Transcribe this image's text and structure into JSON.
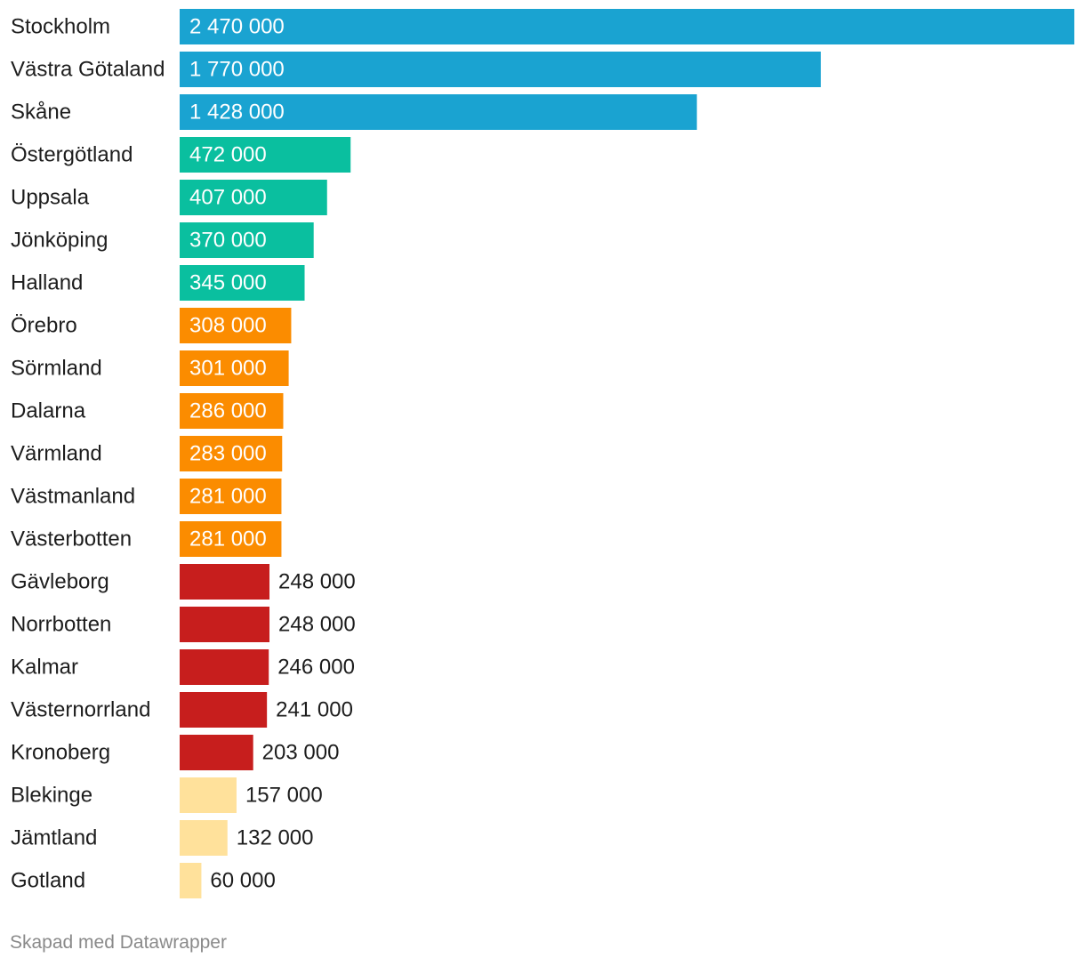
{
  "chart_data": {
    "type": "bar",
    "orientation": "horizontal",
    "title": "",
    "xlabel": "",
    "ylabel": "",
    "xlim": [
      0,
      2470000
    ],
    "grid": false,
    "categories": [
      "Stockholm",
      "Västra Götaland",
      "Skåne",
      "Östergötland",
      "Uppsala",
      "Jönköping",
      "Halland",
      "Örebro",
      "Sörmland",
      "Dalarna",
      "Värmland",
      "Västmanland",
      "Västerbotten",
      "Gävleborg",
      "Norrbotten",
      "Kalmar",
      "Västernorrland",
      "Kronoberg",
      "Blekinge",
      "Jämtland",
      "Gotland"
    ],
    "values": [
      2470000,
      1770000,
      1428000,
      472000,
      407000,
      370000,
      345000,
      308000,
      301000,
      286000,
      283000,
      281000,
      281000,
      248000,
      248000,
      246000,
      241000,
      203000,
      157000,
      132000,
      60000
    ],
    "value_labels": [
      "2 470 000",
      "1 770 000",
      "1 428 000",
      "472 000",
      "407 000",
      "370 000",
      "345 000",
      "308 000",
      "301 000",
      "286 000",
      "283 000",
      "281 000",
      "281 000",
      "248 000",
      "248 000",
      "246 000",
      "241 000",
      "203 000",
      "157 000",
      "132 000",
      "60 000"
    ],
    "colors": [
      "#1aa3d1",
      "#1aa3d1",
      "#1aa3d1",
      "#0abf9f",
      "#0abf9f",
      "#0abf9f",
      "#0abf9f",
      "#fb8c00",
      "#fb8c00",
      "#fb8c00",
      "#fb8c00",
      "#fb8c00",
      "#fb8c00",
      "#c71e1d",
      "#c71e1d",
      "#c71e1d",
      "#c71e1d",
      "#c71e1d",
      "#ffe19b",
      "#ffe19b",
      "#ffe19b"
    ],
    "label_inside": [
      true,
      true,
      true,
      true,
      true,
      true,
      true,
      true,
      true,
      true,
      true,
      true,
      true,
      false,
      false,
      false,
      false,
      false,
      false,
      false,
      false
    ],
    "inside_label_color": "#ffffff",
    "outside_label_color": "#1d1d1d"
  },
  "footer": {
    "text": "Skapad med Datawrapper"
  }
}
